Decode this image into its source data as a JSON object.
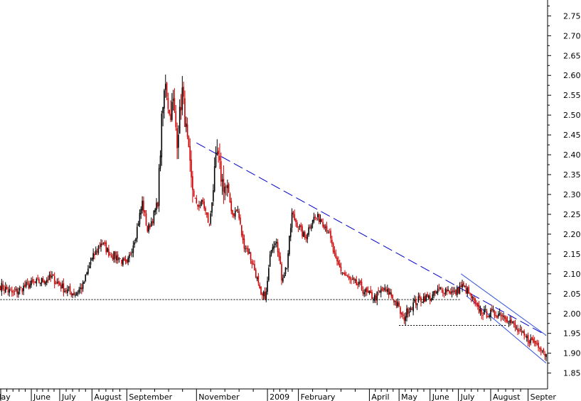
{
  "chart_data": {
    "type": "candlestick",
    "title": "",
    "xlabel": "",
    "ylabel": "",
    "y_axis_position": "right",
    "grid": false,
    "ylim": [
      1.81,
      2.79
    ],
    "y_ticks": [
      "1.85",
      "1.90",
      "1.95",
      "2.00",
      "2.05",
      "2.10",
      "2.15",
      "2.20",
      "2.25",
      "2.30",
      "2.35",
      "2.40",
      "2.45",
      "2.50",
      "2.55",
      "2.60",
      "2.65",
      "2.70",
      "2.75"
    ],
    "month_labels": [
      {
        "label": "May",
        "i": 0
      },
      {
        "label": "June",
        "i": 24
      },
      {
        "label": "July",
        "i": 46
      },
      {
        "label": "August",
        "i": 71
      },
      {
        "label": "September",
        "i": 98
      },
      {
        "label": "November",
        "i": 152
      },
      {
        "label": "2009",
        "i": 207
      },
      {
        "label": "February",
        "i": 231
      },
      {
        "label": "April",
        "i": 286
      },
      {
        "label": "May",
        "i": 309
      },
      {
        "label": "June",
        "i": 333
      },
      {
        "label": "July",
        "i": 355
      },
      {
        "label": "August",
        "i": 380
      },
      {
        "label": "Septer",
        "i": 409
      }
    ],
    "n_bars": 424,
    "colors": {
      "up": "#000000",
      "down": "#cc0000",
      "trend": "#0000cc",
      "channel": "#3355dd",
      "support": "#000000"
    },
    "anchors": [
      [
        0,
        2.07
      ],
      [
        10,
        2.05
      ],
      [
        20,
        2.07
      ],
      [
        30,
        2.08
      ],
      [
        40,
        2.09
      ],
      [
        50,
        2.06
      ],
      [
        58,
        2.05
      ],
      [
        64,
        2.07
      ],
      [
        70,
        2.13
      ],
      [
        78,
        2.18
      ],
      [
        85,
        2.15
      ],
      [
        92,
        2.14
      ],
      [
        98,
        2.12
      ],
      [
        105,
        2.2
      ],
      [
        110,
        2.28
      ],
      [
        114,
        2.21
      ],
      [
        118,
        2.24
      ],
      [
        122,
        2.28
      ],
      [
        125,
        2.48
      ],
      [
        128,
        2.59
      ],
      [
        131,
        2.5
      ],
      [
        134,
        2.53
      ],
      [
        137,
        2.44
      ],
      [
        141,
        2.56
      ],
      [
        144,
        2.46
      ],
      [
        148,
        2.33
      ],
      [
        152,
        2.27
      ],
      [
        157,
        2.28
      ],
      [
        162,
        2.22
      ],
      [
        165,
        2.32
      ],
      [
        168,
        2.4
      ],
      [
        172,
        2.33
      ],
      [
        176,
        2.31
      ],
      [
        180,
        2.25
      ],
      [
        184,
        2.26
      ],
      [
        188,
        2.18
      ],
      [
        193,
        2.15
      ],
      [
        198,
        2.1
      ],
      [
        202,
        2.04
      ],
      [
        206,
        2.05
      ],
      [
        210,
        2.17
      ],
      [
        214,
        2.19
      ],
      [
        218,
        2.09
      ],
      [
        222,
        2.12
      ],
      [
        226,
        2.25
      ],
      [
        231,
        2.22
      ],
      [
        236,
        2.19
      ],
      [
        242,
        2.24
      ],
      [
        248,
        2.24
      ],
      [
        254,
        2.21
      ],
      [
        260,
        2.13
      ],
      [
        266,
        2.1
      ],
      [
        272,
        2.08
      ],
      [
        278,
        2.07
      ],
      [
        284,
        2.05
      ],
      [
        290,
        2.04
      ],
      [
        296,
        2.06
      ],
      [
        302,
        2.05
      ],
      [
        308,
        2.02
      ],
      [
        312,
        1.985
      ],
      [
        316,
        2.01
      ],
      [
        322,
        2.03
      ],
      [
        328,
        2.04
      ],
      [
        334,
        2.04
      ],
      [
        340,
        2.06
      ],
      [
        346,
        2.06
      ],
      [
        352,
        2.05
      ],
      [
        357,
        2.07
      ],
      [
        361,
        2.06
      ],
      [
        365,
        2.04
      ],
      [
        370,
        2.01
      ],
      [
        376,
        2.0
      ],
      [
        382,
        2.0
      ],
      [
        388,
        2.0
      ],
      [
        394,
        1.985
      ],
      [
        400,
        1.96
      ],
      [
        406,
        1.94
      ],
      [
        412,
        1.93
      ],
      [
        418,
        1.92
      ],
      [
        423,
        1.895
      ]
    ],
    "overlays": {
      "long_trendline": {
        "from": [
          152,
          2.43
        ],
        "to": [
          423,
          1.945
        ]
      },
      "channel_upper": {
        "from": [
          357,
          2.1
        ],
        "to": [
          423,
          1.945
        ]
      },
      "channel_lower": {
        "from": [
          361,
          2.045
        ],
        "to": [
          423,
          1.875
        ]
      },
      "support_1": {
        "y": 2.035,
        "from_i": 0,
        "to_i": 357
      },
      "support_2": {
        "y": 1.97,
        "from_i": 309,
        "to_i": 392
      }
    }
  }
}
